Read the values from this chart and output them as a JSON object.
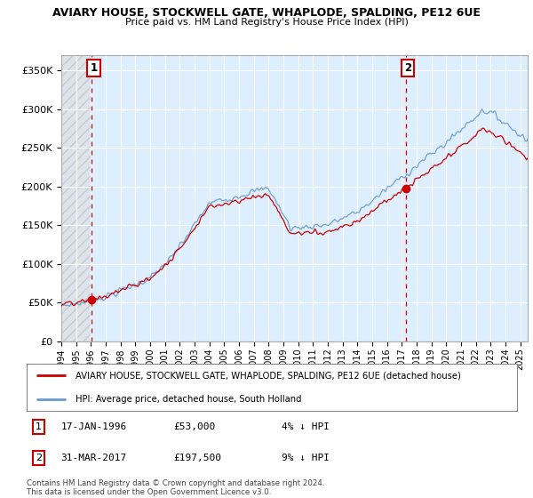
{
  "title": "AVIARY HOUSE, STOCKWELL GATE, WHAPLODE, SPALDING, PE12 6UE",
  "subtitle": "Price paid vs. HM Land Registry's House Price Index (HPI)",
  "xlim": [
    1994.0,
    2025.5
  ],
  "ylim": [
    0,
    370000
  ],
  "yticks": [
    0,
    50000,
    100000,
    150000,
    200000,
    250000,
    300000,
    350000
  ],
  "ytick_labels": [
    "£0",
    "£50K",
    "£100K",
    "£150K",
    "£200K",
    "£250K",
    "£300K",
    "£350K"
  ],
  "xticks": [
    1994,
    1995,
    1996,
    1997,
    1998,
    1999,
    2000,
    2001,
    2002,
    2003,
    2004,
    2005,
    2006,
    2007,
    2008,
    2009,
    2010,
    2011,
    2012,
    2013,
    2014,
    2015,
    2016,
    2017,
    2018,
    2019,
    2020,
    2021,
    2022,
    2023,
    2024,
    2025
  ],
  "sale1_date": 1996.04,
  "sale1_price": 53000,
  "sale1_label": "1",
  "sale2_date": 2017.25,
  "sale2_price": 197500,
  "sale2_label": "2",
  "legend_line1_color": "#cc0000",
  "legend_line1_label": "AVIARY HOUSE, STOCKWELL GATE, WHAPLODE, SPALDING, PE12 6UE (detached house)",
  "legend_line2_color": "#6699cc",
  "legend_line2_label": "HPI: Average price, detached house, South Holland",
  "table_data": [
    {
      "num": "1",
      "date": "17-JAN-1996",
      "price": "£53,000",
      "hpi": "4% ↓ HPI"
    },
    {
      "num": "2",
      "date": "31-MAR-2017",
      "price": "£197,500",
      "hpi": "9% ↓ HPI"
    }
  ],
  "footer": "Contains HM Land Registry data © Crown copyright and database right 2024.\nThis data is licensed under the Open Government Licence v3.0.",
  "bg_color": "#ffffff",
  "plot_bg_color": "#ddeeff",
  "grid_color": "#ffffff",
  "hatch_color": "#cccccc"
}
